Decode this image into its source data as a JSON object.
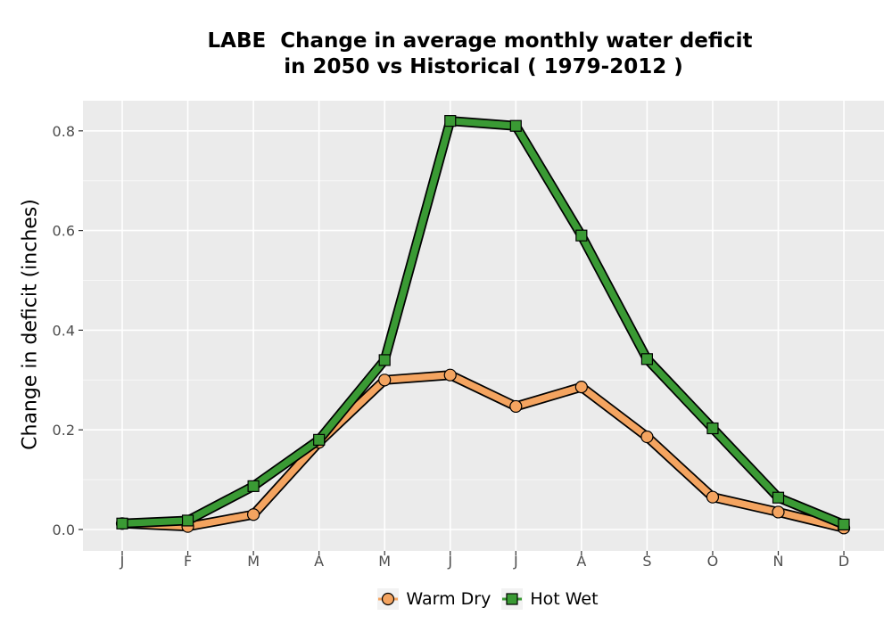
{
  "chart_data": {
    "type": "line",
    "title_lines": [
      "LABE  Change in average monthly water deficit",
      " in 2050 vs Historical ( 1979-2012 )"
    ],
    "xlabel": "",
    "ylabel": "Change in deficit (inches)",
    "categories": [
      "J",
      "F",
      "M",
      "A",
      "M",
      "J",
      "J",
      "A",
      "S",
      "O",
      "N",
      "D"
    ],
    "ylim": [
      -0.05,
      0.86
    ],
    "yticks": [
      0.0,
      0.2,
      0.4,
      0.6,
      0.8
    ],
    "ytick_labels": [
      "0.0",
      "0.2",
      "0.4",
      "0.6",
      "0.8"
    ],
    "grid": true,
    "legend_position": "bottom",
    "series": [
      {
        "name": "Warm Dry",
        "marker": "circle",
        "color": "#F4A460",
        "values": [
          0.012,
          0.006,
          0.03,
          0.175,
          0.3,
          0.31,
          0.247,
          0.286,
          0.186,
          0.065,
          0.035,
          0.003
        ]
      },
      {
        "name": "Hot Wet",
        "marker": "square",
        "color": "#3A9A34",
        "values": [
          0.012,
          0.018,
          0.087,
          0.18,
          0.34,
          0.82,
          0.81,
          0.59,
          0.342,
          0.203,
          0.064,
          0.01
        ]
      }
    ]
  }
}
